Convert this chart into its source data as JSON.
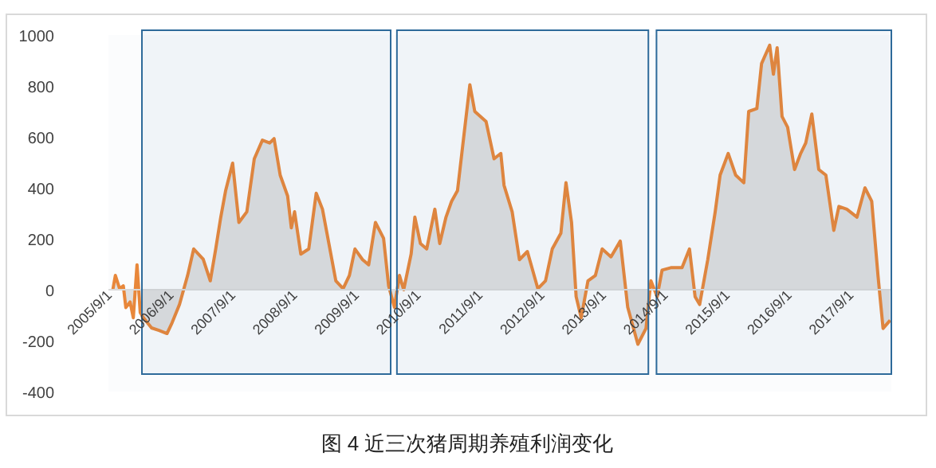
{
  "chart_data": {
    "type": "area",
    "title": "图 4 近三次猪周期养殖利润变化",
    "x": [
      "2005-09-02",
      "2005-09-17",
      "2005-10-12",
      "2005-11-03",
      "2005-11-18",
      "2005-12-13",
      "2006-01-01",
      "2006-01-23",
      "2006-02-11",
      "2006-03-02",
      "2006-04-19",
      "2006-06-02",
      "2006-07-19",
      "2006-08-18",
      "2006-10-01",
      "2006-11-18",
      "2006-12-24",
      "2007-02-18",
      "2007-04-01",
      "2007-05-03",
      "2007-06-02",
      "2007-07-01",
      "2007-08-11",
      "2007-09-17",
      "2007-11-03",
      "2007-12-17",
      "2008-02-03",
      "2008-03-17",
      "2008-04-12",
      "2008-05-18",
      "2008-07-01",
      "2008-07-23",
      "2008-08-11",
      "2008-09-17",
      "2008-11-03",
      "2008-12-17",
      "2009-01-23",
      "2009-03-02",
      "2009-04-12",
      "2009-05-25",
      "2009-07-01",
      "2009-08-03",
      "2009-09-17",
      "2009-10-23",
      "2009-12-02",
      "2010-01-19",
      "2010-02-18",
      "2010-03-24",
      "2010-04-23",
      "2010-05-18",
      "2010-07-01",
      "2010-07-23",
      "2010-08-25",
      "2010-10-01",
      "2010-11-18",
      "2010-12-17",
      "2011-01-23",
      "2011-02-25",
      "2011-04-01",
      "2011-05-11",
      "2011-06-13",
      "2011-07-12",
      "2011-09-17",
      "2011-11-03",
      "2011-12-13",
      "2012-01-01",
      "2012-02-18",
      "2012-04-01",
      "2012-05-18",
      "2012-07-19",
      "2012-09-02",
      "2012-10-12",
      "2012-12-02",
      "2013-01-01",
      "2013-02-03",
      "2013-03-02",
      "2013-04-01",
      "2013-05-11",
      "2013-06-24",
      "2013-08-03",
      "2013-09-24",
      "2013-11-18",
      "2014-01-01",
      "2014-03-02",
      "2014-04-19",
      "2014-05-18",
      "2014-06-24",
      "2014-07-23",
      "2014-09-17",
      "2014-11-18",
      "2015-01-01",
      "2015-02-03",
      "2015-03-02",
      "2015-04-19",
      "2015-06-02",
      "2015-07-01",
      "2015-08-18",
      "2015-10-01",
      "2015-11-18",
      "2015-12-17",
      "2016-02-03",
      "2016-03-02",
      "2016-04-19",
      "2016-05-11",
      "2016-06-02",
      "2016-07-01",
      "2016-08-03",
      "2016-09-13",
      "2016-10-19",
      "2016-11-18",
      "2016-12-24",
      "2017-02-03",
      "2017-03-17",
      "2017-05-03",
      "2017-06-02",
      "2017-07-19",
      "2017-09-17",
      "2017-11-03",
      "2017-12-13",
      "2018-01-19",
      "2018-02-18",
      "2018-04-01"
    ],
    "series": [
      {
        "color": "#e8873a",
        "values": [
          0,
          56,
          4,
          15,
          -70,
          -48,
          -110,
          98,
          -90,
          -110,
          -150,
          -160,
          -172,
          -130,
          -58,
          56,
          160,
          120,
          35,
          160,
          285,
          390,
          497,
          264,
          306,
          514,
          587,
          576,
          593,
          450,
          368,
          243,
          306,
          140,
          160,
          379,
          316,
          181,
          35,
          4,
          56,
          160,
          118,
          98,
          264,
          202,
          15,
          -69,
          56,
          0,
          140,
          285,
          181,
          160,
          316,
          181,
          285,
          347,
          389,
          618,
          805,
          700,
          660,
          514,
          535,
          410,
          306,
          118,
          150,
          4,
          35,
          160,
          222,
          420,
          264,
          -27,
          -110,
          35,
          56,
          160,
          129,
          191,
          -69,
          -214,
          -152,
          35,
          -27,
          77,
          87,
          87,
          160,
          -27,
          -58,
          118,
          306,
          450,
          535,
          450,
          420,
          700,
          711,
          888,
          960,
          846,
          950,
          680,
          638,
          472,
          535,
          576,
          690,
          472,
          450,
          233,
          327,
          316,
          285,
          400,
          347,
          56,
          -152,
          -120
        ]
      }
    ],
    "xlim": [
      "2005-08-07",
      "2018-04-08"
    ],
    "xticks": [
      {
        "value": "2005-09-01",
        "label": "2005/9/1"
      },
      {
        "value": "2006-09-01",
        "label": "2006/9/1"
      },
      {
        "value": "2007-09-01",
        "label": "2007/9/1"
      },
      {
        "value": "2008-09-01",
        "label": "2008/9/1"
      },
      {
        "value": "2009-09-01",
        "label": "2009/9/1"
      },
      {
        "value": "2010-09-01",
        "label": "2010/9/1"
      },
      {
        "value": "2011-09-01",
        "label": "2011/9/1"
      },
      {
        "value": "2012-09-01",
        "label": "2012/9/1"
      },
      {
        "value": "2013-09-01",
        "label": "2013/9/1"
      },
      {
        "value": "2014-09-01",
        "label": "2014/9/1"
      },
      {
        "value": "2015-09-01",
        "label": "2015/9/1"
      },
      {
        "value": "2016-09-01",
        "label": "2016/9/1"
      },
      {
        "value": "2017-09-01",
        "label": "2017/9/1"
      }
    ],
    "ylim": [
      -400,
      1000
    ],
    "yticks": [
      -400,
      -200,
      0,
      200,
      400,
      600,
      800,
      1000
    ],
    "bands": [
      {
        "axis": "x",
        "from": "2006-02-21",
        "to": "2010-03-02",
        "color": "#2e6a9a"
      },
      {
        "axis": "x",
        "from": "2010-04-08",
        "to": "2014-05-03",
        "color": "#2e6a9a"
      },
      {
        "axis": "x",
        "from": "2014-06-20",
        "to": "2018-04-08",
        "color": "#2e6a9a"
      }
    ],
    "grid": false
  }
}
